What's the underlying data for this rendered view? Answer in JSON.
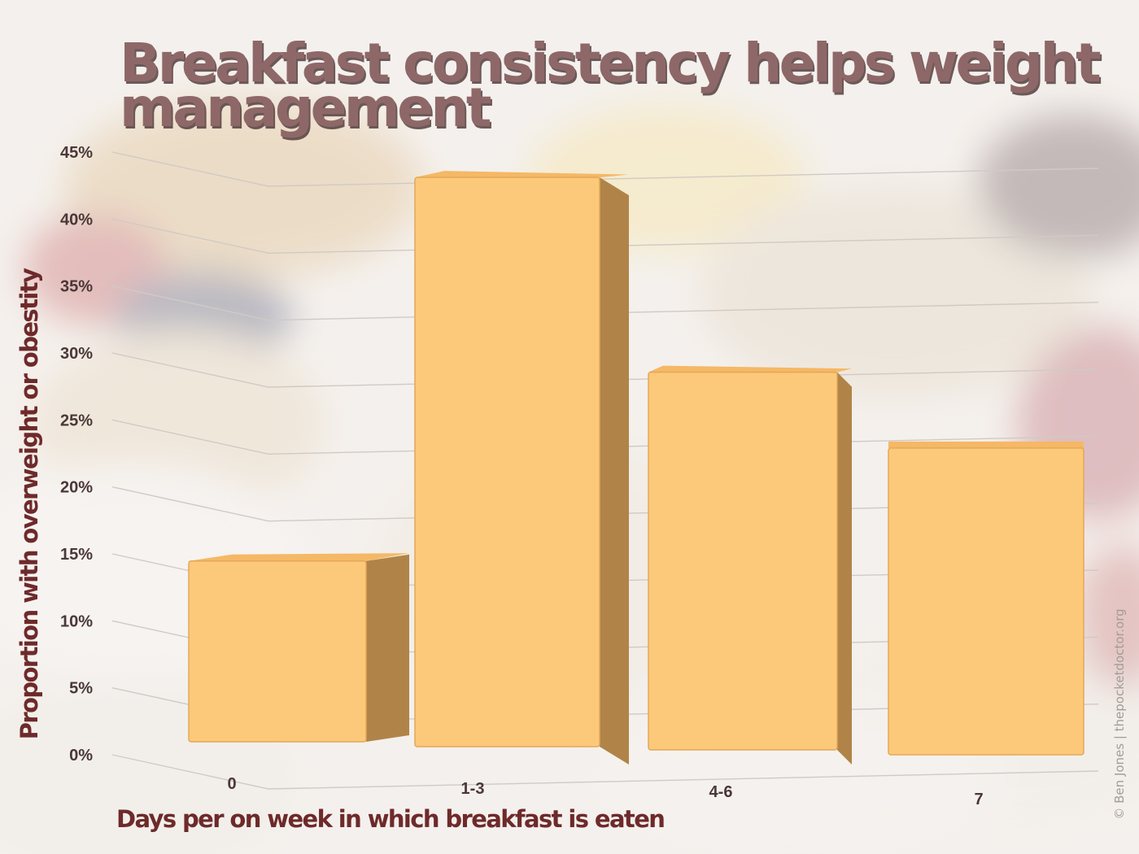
{
  "colors": {
    "title_fill": "#8e6868",
    "title_shadow": "#4a3434",
    "axis_title": "#6e2a2a",
    "tick_text": "#4a3838",
    "bar_front": "#fcc97a",
    "bar_top": "#f5b865",
    "bar_side": "#b08448",
    "bar_edge": "#e3a858",
    "grid": "#d0cac4",
    "credit": "#a39c98"
  },
  "title_lines": [
    "Breakfast consistency helps weight",
    "management"
  ],
  "credit": "© Ben Jones | thepocketdoctor.org",
  "chart_data": {
    "type": "bar",
    "title": "Breakfast consistency helps weight management",
    "xlabel": "Days per on week in which breakfast is eaten",
    "ylabel": "Proportion with overweight or obestity",
    "categories": [
      "0",
      "1-3",
      "4-6",
      "7"
    ],
    "values": [
      13.5,
      42.5,
      28.2,
      22.9
    ],
    "ylim": [
      0,
      45
    ],
    "yticks": [
      0,
      5,
      10,
      15,
      20,
      25,
      30,
      35,
      40,
      45
    ],
    "ytick_labels": [
      "0%",
      "5%",
      "10%",
      "15%",
      "20%",
      "25%",
      "30%",
      "35%",
      "40%",
      "45%"
    ],
    "grid": true,
    "legend": "none",
    "style": "3d-column"
  }
}
